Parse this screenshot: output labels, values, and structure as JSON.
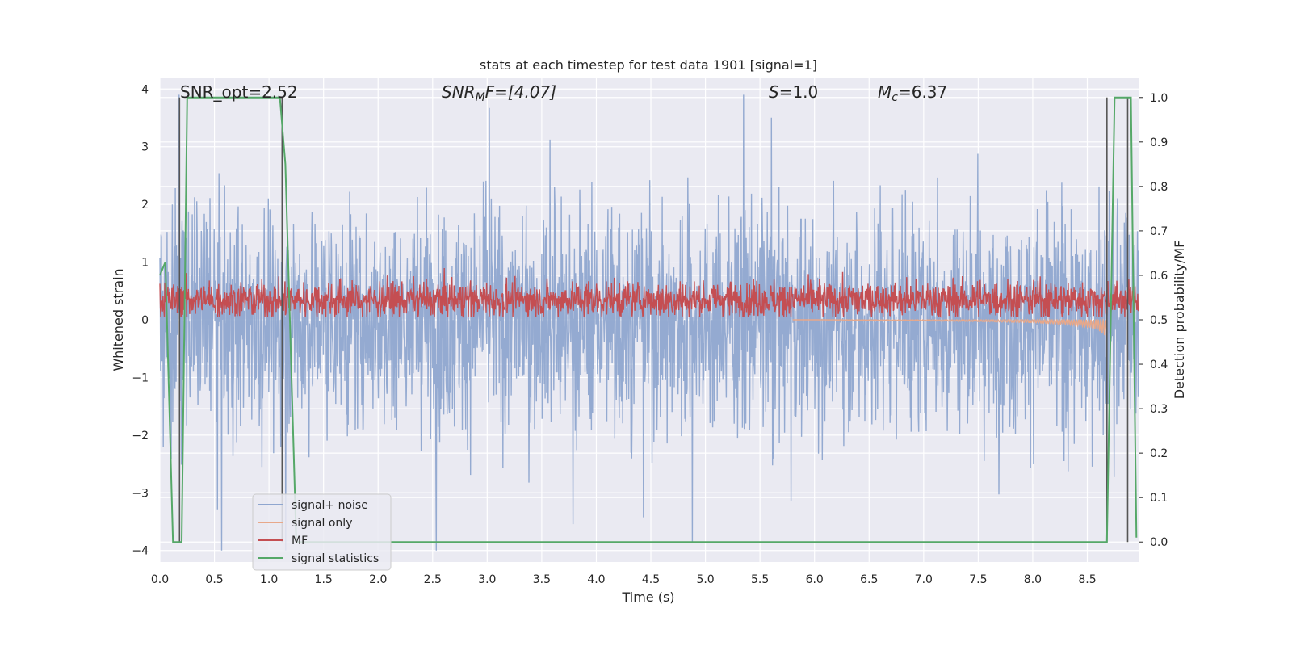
{
  "chart_data": {
    "type": "line",
    "title": "stats at each timestep for test data 1901 [signal=1]",
    "xlabel": "Time (s)",
    "ylabel": "Whitened strain",
    "y2label": "Detection probability/MF",
    "xlim": [
      0.0,
      8.97
    ],
    "ylim": [
      -4.2,
      4.2
    ],
    "y2lim": [
      -0.045,
      1.045
    ],
    "xticks": [
      "0.0",
      "0.5",
      "1.0",
      "1.5",
      "2.0",
      "2.5",
      "3.0",
      "3.5",
      "4.0",
      "4.5",
      "5.0",
      "5.5",
      "6.0",
      "6.5",
      "7.0",
      "7.5",
      "8.0",
      "8.5"
    ],
    "yticks": [
      "4",
      "3",
      "2",
      "1",
      "0",
      "−1",
      "−2",
      "−3",
      "−4"
    ],
    "y2ticks": [
      "1.0",
      "0.9",
      "0.8",
      "0.7",
      "0.6",
      "0.5",
      "0.4",
      "0.3",
      "0.2",
      "0.1",
      "0.0"
    ],
    "grid": true,
    "legend_placement": "lower-left",
    "annotations": {
      "snr_opt": "SNR_opt=2.52",
      "snr_mf_base": "SNR",
      "snr_mf_sub": "M",
      "snr_mf_rest": "F=[4.07]",
      "s_var": "S",
      "s_rest": "=1.0",
      "mc_var": "M",
      "mc_sub": "c",
      "mc_rest": "=6.37"
    },
    "series": [
      {
        "name": "signal+ noise",
        "color": "#8fa6cf",
        "approx_envelope_y": [
          -2.0,
          2.1
        ],
        "peak_max_y": 3.9,
        "peak_min_y": -4.0
      },
      {
        "name": "signal only",
        "color": "#e8a88a",
        "x": [
          0.0,
          6.0,
          7.0,
          7.5,
          8.0,
          8.3,
          8.5,
          8.6,
          8.68
        ],
        "y": [
          0.0,
          0.0,
          -0.02,
          -0.03,
          -0.05,
          -0.08,
          -0.12,
          -0.18,
          -0.3
        ]
      },
      {
        "name": "MF",
        "color": "#c44e52",
        "approx_center_y": 0.35,
        "approx_band_y": [
          0.05,
          0.95
        ]
      },
      {
        "name": "signal statistics",
        "color": "#55a868",
        "axis": "right",
        "x": [
          0.0,
          0.05,
          0.12,
          0.2,
          0.25,
          1.1,
          1.15,
          1.25,
          8.68,
          8.75,
          8.82,
          8.9,
          8.95
        ],
        "y": [
          0.6,
          0.63,
          0.0,
          0.0,
          1.0,
          1.0,
          0.85,
          0.0,
          0.0,
          1.0,
          1.0,
          1.0,
          0.01
        ]
      }
    ],
    "vertical_lines_x": [
      0.18,
      1.12,
      8.68,
      8.87
    ]
  }
}
